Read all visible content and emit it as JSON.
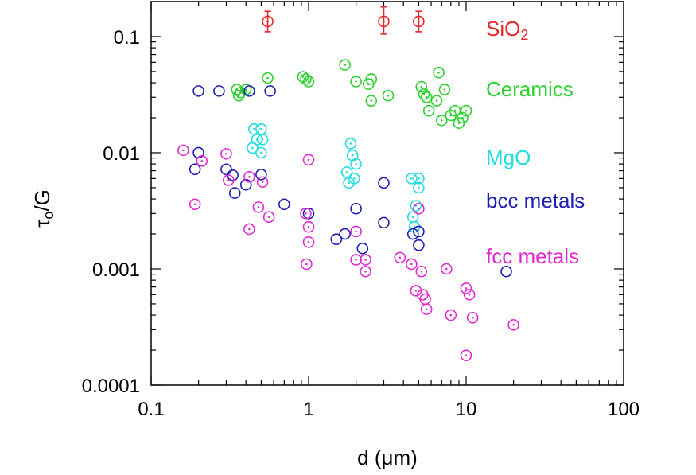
{
  "chart_data": {
    "type": "scatter",
    "title": "",
    "xlabel": "d (μm)",
    "ylabel_main": "τ",
    "ylabel_sub": "o",
    "ylabel_rest": "/G",
    "x_scale": "log",
    "y_scale": "log",
    "xlim": [
      0.1,
      100
    ],
    "ylim": [
      0.0001,
      0.2
    ],
    "x_ticks": [
      {
        "value": 0.1,
        "label": "0.1"
      },
      {
        "value": 1,
        "label": "1"
      },
      {
        "value": 10,
        "label": "10"
      },
      {
        "value": 100,
        "label": "100"
      }
    ],
    "y_ticks": [
      {
        "value": 0.0001,
        "label": "0.0001"
      },
      {
        "value": 0.001,
        "label": "0.001"
      },
      {
        "value": 0.01,
        "label": "0.01"
      },
      {
        "value": 0.1,
        "label": "0.1"
      }
    ],
    "grid": false,
    "legend_placement": "right (inside plot, labels only)",
    "series": [
      {
        "name": "SiO2",
        "label_main": "SiO",
        "label_sub": "2",
        "color": "#e8262a",
        "marker": "circle-errorbar",
        "points": [
          {
            "x": 0.55,
            "y": 0.135,
            "ylow": 0.11,
            "yhigh": 0.165
          },
          {
            "x": 3.0,
            "y": 0.135,
            "ylow": 0.105,
            "yhigh": 0.18
          },
          {
            "x": 5.0,
            "y": 0.135,
            "ylow": 0.11,
            "yhigh": 0.165
          }
        ]
      },
      {
        "name": "Ceramics",
        "label_main": "Ceramics",
        "color": "#2ed12e",
        "marker": "circle-dot",
        "points": [
          {
            "x": 0.35,
            "y": 0.035
          },
          {
            "x": 0.37,
            "y": 0.033
          },
          {
            "x": 0.4,
            "y": 0.035
          },
          {
            "x": 0.36,
            "y": 0.031
          },
          {
            "x": 0.55,
            "y": 0.044
          },
          {
            "x": 0.92,
            "y": 0.045
          },
          {
            "x": 0.96,
            "y": 0.043
          },
          {
            "x": 1.0,
            "y": 0.041
          },
          {
            "x": 1.7,
            "y": 0.057
          },
          {
            "x": 2.0,
            "y": 0.041
          },
          {
            "x": 2.4,
            "y": 0.039
          },
          {
            "x": 2.5,
            "y": 0.043
          },
          {
            "x": 2.5,
            "y": 0.028
          },
          {
            "x": 3.2,
            "y": 0.031
          },
          {
            "x": 5.2,
            "y": 0.037
          },
          {
            "x": 5.4,
            "y": 0.032
          },
          {
            "x": 5.6,
            "y": 0.03
          },
          {
            "x": 5.8,
            "y": 0.023
          },
          {
            "x": 6.5,
            "y": 0.028
          },
          {
            "x": 6.7,
            "y": 0.049
          },
          {
            "x": 7.0,
            "y": 0.019
          },
          {
            "x": 7.3,
            "y": 0.035
          },
          {
            "x": 8.0,
            "y": 0.021
          },
          {
            "x": 8.5,
            "y": 0.023
          },
          {
            "x": 9.0,
            "y": 0.018
          },
          {
            "x": 9.5,
            "y": 0.02
          },
          {
            "x": 10.0,
            "y": 0.023
          }
        ]
      },
      {
        "name": "MgO",
        "label_main": "MgO",
        "color": "#22dde0",
        "marker": "circle-dot",
        "points": [
          {
            "x": 0.45,
            "y": 0.016
          },
          {
            "x": 0.5,
            "y": 0.016
          },
          {
            "x": 0.47,
            "y": 0.013
          },
          {
            "x": 0.51,
            "y": 0.013
          },
          {
            "x": 0.44,
            "y": 0.011
          },
          {
            "x": 0.5,
            "y": 0.01
          },
          {
            "x": 1.85,
            "y": 0.012
          },
          {
            "x": 1.9,
            "y": 0.0095
          },
          {
            "x": 2.0,
            "y": 0.008
          },
          {
            "x": 1.75,
            "y": 0.0068
          },
          {
            "x": 1.95,
            "y": 0.006
          },
          {
            "x": 1.8,
            "y": 0.0055
          },
          {
            "x": 4.5,
            "y": 0.006
          },
          {
            "x": 5.0,
            "y": 0.006
          },
          {
            "x": 4.8,
            "y": 0.0035
          },
          {
            "x": 4.6,
            "y": 0.0028
          },
          {
            "x": 4.7,
            "y": 0.0023
          },
          {
            "x": 5.0,
            "y": 0.005
          }
        ]
      },
      {
        "name": "bcc metals",
        "label_main": "bcc metals",
        "color": "#1e1eb4",
        "marker": "circle",
        "points": [
          {
            "x": 0.2,
            "y": 0.034
          },
          {
            "x": 0.27,
            "y": 0.034
          },
          {
            "x": 0.42,
            "y": 0.034
          },
          {
            "x": 0.57,
            "y": 0.034
          },
          {
            "x": 0.2,
            "y": 0.01
          },
          {
            "x": 0.19,
            "y": 0.0072
          },
          {
            "x": 0.3,
            "y": 0.0072
          },
          {
            "x": 0.33,
            "y": 0.0064
          },
          {
            "x": 0.5,
            "y": 0.0065
          },
          {
            "x": 0.4,
            "y": 0.0053
          },
          {
            "x": 0.34,
            "y": 0.0045
          },
          {
            "x": 0.7,
            "y": 0.0036
          },
          {
            "x": 1.0,
            "y": 0.003
          },
          {
            "x": 2.0,
            "y": 0.0033
          },
          {
            "x": 3.0,
            "y": 0.0055
          },
          {
            "x": 3.0,
            "y": 0.0025
          },
          {
            "x": 1.5,
            "y": 0.0018
          },
          {
            "x": 1.7,
            "y": 0.002
          },
          {
            "x": 2.2,
            "y": 0.0015
          },
          {
            "x": 4.6,
            "y": 0.002
          },
          {
            "x": 5.0,
            "y": 0.0016
          },
          {
            "x": 5.0,
            "y": 0.0021
          },
          {
            "x": 18.0,
            "y": 0.00095
          }
        ]
      },
      {
        "name": "fcc metals",
        "label_main": "fcc metals",
        "color": "#e32ad2",
        "marker": "circle-dot",
        "points": [
          {
            "x": 0.16,
            "y": 0.0105
          },
          {
            "x": 0.21,
            "y": 0.0085
          },
          {
            "x": 0.3,
            "y": 0.0098
          },
          {
            "x": 0.31,
            "y": 0.0058
          },
          {
            "x": 0.42,
            "y": 0.0062
          },
          {
            "x": 0.51,
            "y": 0.0056
          },
          {
            "x": 0.19,
            "y": 0.0036
          },
          {
            "x": 0.48,
            "y": 0.0034
          },
          {
            "x": 0.56,
            "y": 0.0028
          },
          {
            "x": 0.42,
            "y": 0.0022
          },
          {
            "x": 1.0,
            "y": 0.0087
          },
          {
            "x": 0.96,
            "y": 0.003
          },
          {
            "x": 1.0,
            "y": 0.0023
          },
          {
            "x": 1.0,
            "y": 0.0017
          },
          {
            "x": 0.97,
            "y": 0.0011
          },
          {
            "x": 2.0,
            "y": 0.0021
          },
          {
            "x": 2.0,
            "y": 0.0012
          },
          {
            "x": 2.3,
            "y": 0.0012
          },
          {
            "x": 2.3,
            "y": 0.00095
          },
          {
            "x": 3.8,
            "y": 0.00125
          },
          {
            "x": 4.5,
            "y": 0.0011
          },
          {
            "x": 5.2,
            "y": 0.00095
          },
          {
            "x": 5.0,
            "y": 0.0033
          },
          {
            "x": 4.8,
            "y": 0.00065
          },
          {
            "x": 5.3,
            "y": 0.0006
          },
          {
            "x": 5.5,
            "y": 0.00055
          },
          {
            "x": 5.6,
            "y": 0.00045
          },
          {
            "x": 7.5,
            "y": 0.001
          },
          {
            "x": 8.0,
            "y": 0.0004
          },
          {
            "x": 10.0,
            "y": 0.00068
          },
          {
            "x": 10.5,
            "y": 0.0006
          },
          {
            "x": 11.0,
            "y": 0.00038
          },
          {
            "x": 10.0,
            "y": 0.00018
          },
          {
            "x": 20.0,
            "y": 0.00033
          }
        ]
      }
    ]
  }
}
